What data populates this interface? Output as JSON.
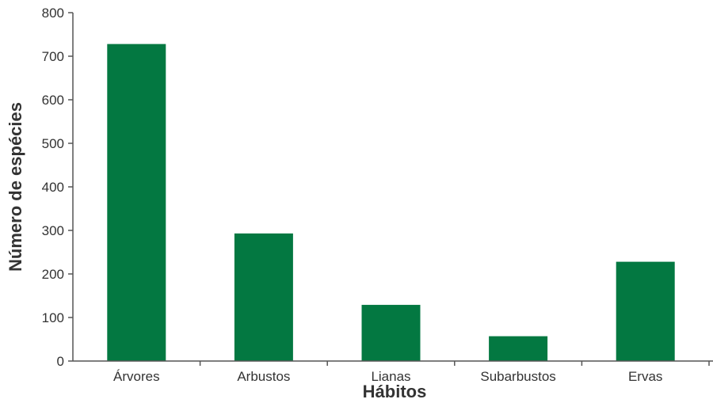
{
  "chart_data": {
    "type": "bar",
    "categories": [
      "Árvores",
      "Arbustos",
      "Lianas",
      "Subarbustos",
      "Ervas"
    ],
    "values": [
      728,
      293,
      129,
      57,
      228
    ],
    "xlabel": "Hábitos",
    "ylabel": "Número de espécies",
    "ylim": [
      0,
      800
    ],
    "yticks": [
      0,
      100,
      200,
      300,
      400,
      500,
      600,
      700,
      800
    ],
    "grid": false,
    "bar_color": "#037841"
  }
}
